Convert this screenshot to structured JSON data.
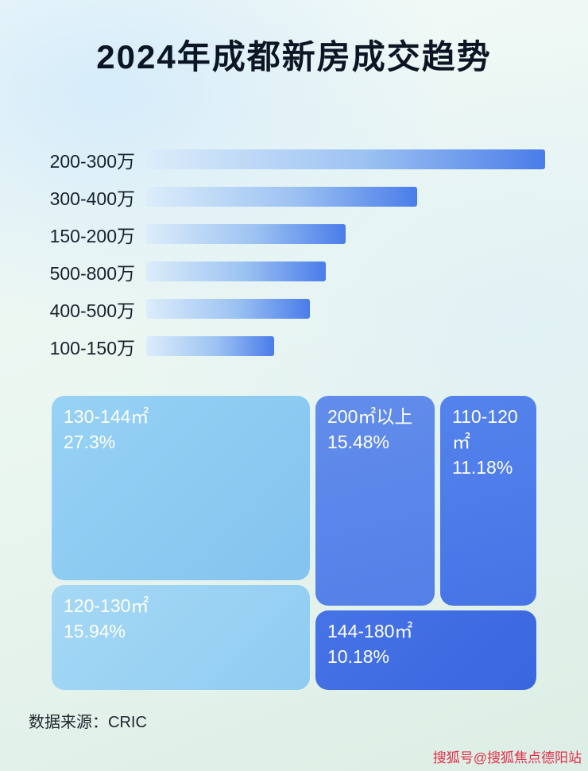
{
  "title": "2024年成都新房成交趋势",
  "chart_data": [
    {
      "type": "bar",
      "orientation": "horizontal",
      "categories": [
        "200-300万",
        "300-400万",
        "150-200万",
        "500-800万",
        "400-500万",
        "100-150万"
      ],
      "values": [
        100,
        68,
        50,
        45,
        41,
        32
      ],
      "value_scale": "relative bar length, max = 100 (no axis, gridlines or data labels shown)",
      "legend": "none"
    },
    {
      "type": "treemap",
      "items": [
        {
          "label": "130-144㎡",
          "value": 27.3,
          "display": "27.3%"
        },
        {
          "label": "200㎡以上",
          "value": 15.48,
          "display": "15.48%"
        },
        {
          "label": "110-120㎡",
          "value": 11.18,
          "display": "11.18%"
        },
        {
          "label": "120-130㎡",
          "value": 15.94,
          "display": "15.94%"
        },
        {
          "label": "144-180㎡",
          "value": 10.18,
          "display": "10.18%"
        }
      ]
    }
  ],
  "footer": {
    "source": "数据来源：CRIC"
  },
  "watermark": {
    "text": "搜狐号@搜狐焦点德阳站"
  },
  "colors": {
    "title_text": "#0b1524",
    "bar_gradient_start": "#dcedfa",
    "bar_gradient_end": "#4a7ce9",
    "treemap_light_blue": "#8fcbf2",
    "treemap_medium_blue": "#5b86ea",
    "treemap_deep_blue": "#3d6be2",
    "watermark_red": "#e22f49"
  }
}
